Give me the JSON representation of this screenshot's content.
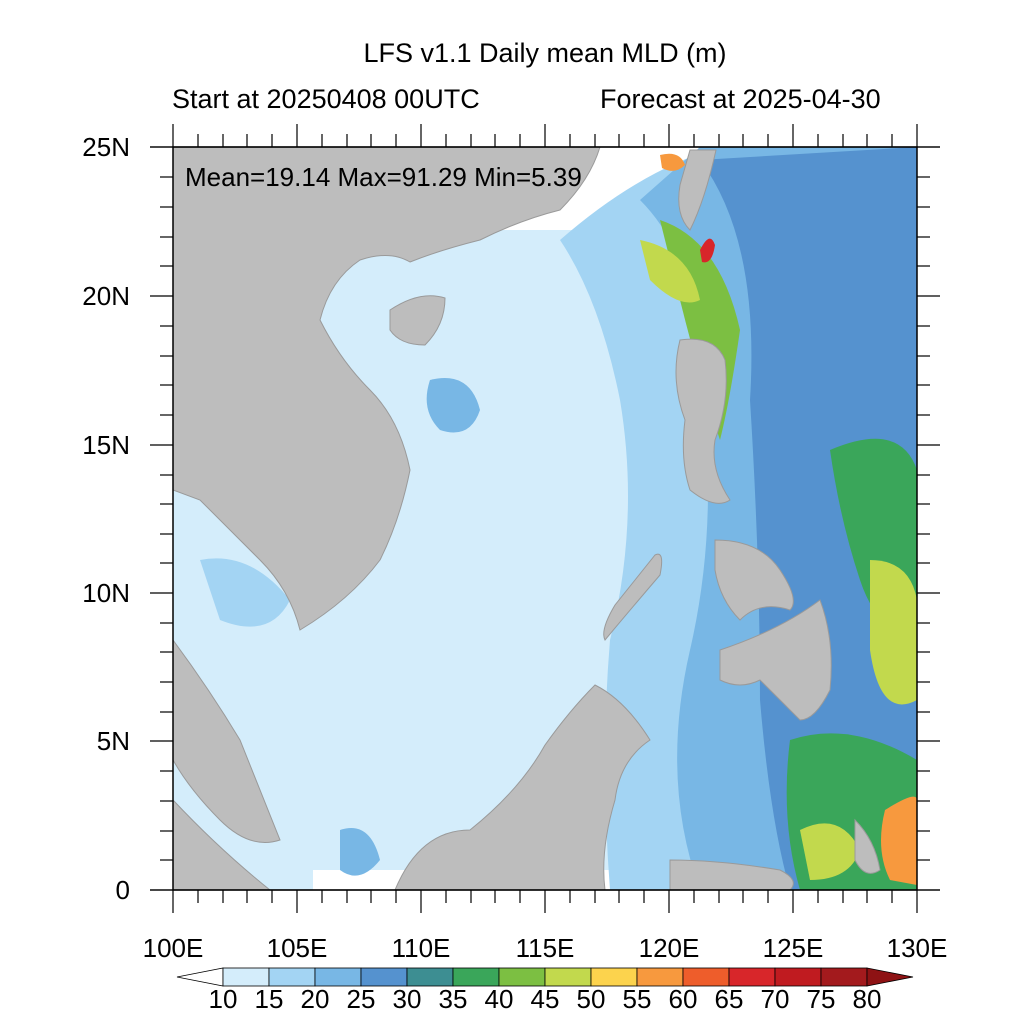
{
  "title": "LFS v1.1 Daily mean MLD (m)",
  "subtitle_left": "Start at 20250408 00UTC",
  "subtitle_right": "Forecast at 2025-04-30",
  "stats": "Mean=19.14  Max=91.29  Min=5.39",
  "y_ticks": [
    "25N",
    "20N",
    "15N",
    "10N",
    "5N",
    "0"
  ],
  "x_ticks": [
    "100E",
    "105E",
    "110E",
    "115E",
    "120E",
    "125E",
    "130E"
  ],
  "colorbar": {
    "labels": [
      "10",
      "15",
      "20",
      "25",
      "30",
      "35",
      "40",
      "45",
      "50",
      "55",
      "60",
      "65",
      "70",
      "75",
      "80"
    ],
    "colors": [
      "#ffffff",
      "#d4edfb",
      "#a3d4f3",
      "#78b7e5",
      "#5592cf",
      "#3d8e92",
      "#3aa65a",
      "#7cbf42",
      "#c2d94d",
      "#fcd34d",
      "#f7993e",
      "#ee5d2b",
      "#d8262a",
      "#c01b20",
      "#a31a1d",
      "#8e1214"
    ]
  },
  "colors": {
    "land": "#bdbdbd",
    "shallow": "#d4edfb",
    "mid": "#a3d4f3",
    "deep": "#5592cf",
    "green": "#3aa65a",
    "yellowgreen": "#c2d94d",
    "orange": "#f7993e",
    "red": "#d8262a"
  }
}
